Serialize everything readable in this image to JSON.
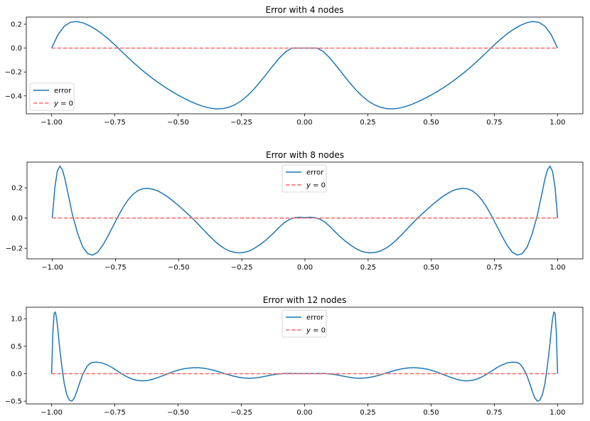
{
  "chart_data": [
    {
      "type": "line",
      "title": "Error with 4 nodes",
      "nodes": 4,
      "xlim": [
        -1.1,
        1.1
      ],
      "ylim": [
        -0.55,
        0.26
      ],
      "xticks": [
        -1.0,
        -0.75,
        -0.5,
        -0.25,
        0.0,
        0.25,
        0.5,
        0.75,
        1.0
      ],
      "xtick_labels": [
        "−1.00",
        "−0.75",
        "−0.50",
        "−0.25",
        "0.00",
        "0.25",
        "0.50",
        "0.75",
        "1.00"
      ],
      "yticks": [
        -0.4,
        -0.2,
        0.0,
        0.2
      ],
      "ytick_labels": [
        "−0.4",
        "−0.2",
        "0.0",
        "0.2"
      ],
      "legend_position": "lower-left",
      "series": [
        {
          "name": "error",
          "color": "#1f77b4",
          "style": "solid",
          "x": [
            -1.0,
            -0.975,
            -0.95,
            -0.925,
            -0.9,
            -0.875,
            -0.85,
            -0.825,
            -0.8,
            -0.775,
            -0.75,
            -0.725,
            -0.7,
            -0.675,
            -0.65,
            -0.625,
            -0.6,
            -0.575,
            -0.55,
            -0.525,
            -0.5,
            -0.475,
            -0.45,
            -0.425,
            -0.4,
            -0.375,
            -0.35,
            -0.325,
            -0.3,
            -0.275,
            -0.25,
            -0.225,
            -0.2,
            -0.175,
            -0.15,
            -0.125,
            -0.1,
            -0.075,
            -0.05,
            -0.025,
            0.0,
            0.025,
            0.05,
            0.075,
            0.1,
            0.125,
            0.15,
            0.175,
            0.2,
            0.225,
            0.25,
            0.275,
            0.3,
            0.325,
            0.35,
            0.375,
            0.4,
            0.425,
            0.45,
            0.475,
            0.5,
            0.525,
            0.55,
            0.575,
            0.6,
            0.625,
            0.65,
            0.675,
            0.7,
            0.725,
            0.75,
            0.775,
            0.8,
            0.825,
            0.85,
            0.875,
            0.9,
            0.925,
            0.95,
            0.975,
            1.0
          ],
          "y": [
            0.0,
            0.1115,
            0.1839,
            0.2172,
            0.2228,
            0.2106,
            0.1872,
            0.1561,
            0.1187,
            0.0754,
            0.0272,
            -0.0236,
            -0.0745,
            -0.1238,
            -0.1705,
            -0.2143,
            -0.2553,
            -0.2937,
            -0.3295,
            -0.3628,
            -0.3935,
            -0.4218,
            -0.4474,
            -0.47,
            -0.4886,
            -0.502,
            -0.5087,
            -0.5071,
            -0.4959,
            -0.474,
            -0.441,
            -0.397,
            -0.3431,
            -0.2812,
            -0.2146,
            -0.1471,
            -0.0836,
            -0.0307,
            0.0,
            0.0,
            0.0,
            0.0,
            0.0,
            -0.0307,
            -0.0836,
            -0.1471,
            -0.2146,
            -0.2812,
            -0.3431,
            -0.397,
            -0.441,
            -0.474,
            -0.4959,
            -0.5071,
            -0.5087,
            -0.502,
            -0.4886,
            -0.47,
            -0.4474,
            -0.4218,
            -0.3935,
            -0.3628,
            -0.3295,
            -0.2937,
            -0.2553,
            -0.2143,
            -0.1705,
            -0.1238,
            -0.0745,
            -0.0236,
            0.0272,
            0.0754,
            0.1187,
            0.1561,
            0.1872,
            0.2106,
            0.2228,
            0.2172,
            0.1839,
            0.1115,
            0.0
          ]
        },
        {
          "name": "$y = 0$",
          "color": "#ff6666",
          "style": "dashed",
          "x": [
            -1.0,
            1.0
          ],
          "y": [
            0.0,
            0.0
          ]
        }
      ]
    },
    {
      "type": "line",
      "title": "Error with 8 nodes",
      "nodes": 8,
      "xlim": [
        -1.1,
        1.1
      ],
      "ylim": [
        -0.27,
        0.37
      ],
      "xticks": [
        -1.0,
        -0.75,
        -0.5,
        -0.25,
        0.0,
        0.25,
        0.5,
        0.75,
        1.0
      ],
      "xtick_labels": [
        "−1.00",
        "−0.75",
        "−0.50",
        "−0.25",
        "0.00",
        "0.25",
        "0.50",
        "0.75",
        "1.00"
      ],
      "yticks": [
        -0.2,
        0.0,
        0.2
      ],
      "ytick_labels": [
        "−0.2",
        "0.0",
        "0.2"
      ],
      "legend_position": "upper-center",
      "series": [
        {
          "name": "error",
          "color": "#1f77b4",
          "style": "solid",
          "x": [
            -1.0,
            -0.99,
            -0.98,
            -0.97,
            -0.96,
            -0.95,
            -0.94,
            -0.93,
            -0.92,
            -0.9,
            -0.88,
            -0.86,
            -0.84,
            -0.82,
            -0.8,
            -0.78,
            -0.76,
            -0.74,
            -0.72,
            -0.7,
            -0.68,
            -0.66,
            -0.64,
            -0.62,
            -0.6,
            -0.58,
            -0.55,
            -0.52,
            -0.5,
            -0.48,
            -0.46,
            -0.44,
            -0.42,
            -0.4,
            -0.38,
            -0.36,
            -0.34,
            -0.32,
            -0.3,
            -0.28,
            -0.26,
            -0.24,
            -0.22,
            -0.2,
            -0.18,
            -0.16,
            -0.14,
            -0.12,
            -0.1,
            -0.08,
            -0.06,
            -0.04,
            -0.02,
            0.0,
            0.02,
            0.04,
            0.06,
            0.08,
            0.1,
            0.12,
            0.14,
            0.16,
            0.18,
            0.2,
            0.22,
            0.24,
            0.26,
            0.28,
            0.3,
            0.32,
            0.34,
            0.36,
            0.38,
            0.4,
            0.42,
            0.44,
            0.46,
            0.48,
            0.5,
            0.52,
            0.55,
            0.58,
            0.6,
            0.62,
            0.64,
            0.66,
            0.68,
            0.7,
            0.72,
            0.74,
            0.76,
            0.78,
            0.8,
            0.82,
            0.84,
            0.86,
            0.88,
            0.9,
            0.92,
            0.93,
            0.94,
            0.95,
            0.96,
            0.97,
            0.98,
            0.99,
            1.0
          ],
          "y": [
            0.0,
            0.2,
            0.31,
            0.343,
            0.32,
            0.26,
            0.18,
            0.1,
            0.02,
            -0.1,
            -0.19,
            -0.235,
            -0.245,
            -0.225,
            -0.18,
            -0.12,
            -0.055,
            0.01,
            0.07,
            0.12,
            0.158,
            0.183,
            0.195,
            0.196,
            0.19,
            0.178,
            0.148,
            0.11,
            0.082,
            0.052,
            0.022,
            -0.01,
            -0.045,
            -0.08,
            -0.115,
            -0.148,
            -0.177,
            -0.2,
            -0.217,
            -0.227,
            -0.23,
            -0.227,
            -0.218,
            -0.2,
            -0.178,
            -0.153,
            -0.124,
            -0.092,
            -0.058,
            -0.028,
            -0.008,
            0.003,
            0.005,
            0.003,
            0.005,
            0.003,
            -0.008,
            -0.028,
            -0.058,
            -0.092,
            -0.124,
            -0.153,
            -0.178,
            -0.2,
            -0.218,
            -0.227,
            -0.23,
            -0.227,
            -0.217,
            -0.2,
            -0.177,
            -0.148,
            -0.115,
            -0.08,
            -0.045,
            -0.01,
            0.022,
            0.052,
            0.082,
            0.11,
            0.148,
            0.178,
            0.19,
            0.196,
            0.195,
            0.183,
            0.158,
            0.12,
            0.07,
            0.01,
            -0.055,
            -0.12,
            -0.18,
            -0.225,
            -0.245,
            -0.235,
            -0.19,
            -0.1,
            0.02,
            0.1,
            0.18,
            0.26,
            0.32,
            0.343,
            0.31,
            0.2,
            0.0
          ]
        },
        {
          "name": "$y = 0$",
          "color": "#ff6666",
          "style": "dashed",
          "x": [
            -1.0,
            1.0
          ],
          "y": [
            0.0,
            0.0
          ]
        }
      ]
    },
    {
      "type": "line",
      "title": "Error with 12 nodes",
      "nodes": 12,
      "xlim": [
        -1.1,
        1.1
      ],
      "ylim": [
        -0.55,
        1.21
      ],
      "xticks": [
        -1.0,
        -0.75,
        -0.5,
        -0.25,
        0.0,
        0.25,
        0.5,
        0.75,
        1.0
      ],
      "xtick_labels": [
        "−1.00",
        "−0.75",
        "−0.50",
        "−0.25",
        "0.00",
        "0.25",
        "0.50",
        "0.75",
        "1.00"
      ],
      "yticks": [
        -0.5,
        0.0,
        0.5,
        1.0
      ],
      "ytick_labels": [
        "−0.5",
        "0.0",
        "0.5",
        "1.0"
      ],
      "legend_position": "upper-center",
      "series": [
        {
          "name": "error",
          "color": "#1f77b4",
          "style": "solid",
          "x": [
            -1.0,
            -0.995,
            -0.99,
            -0.985,
            -0.98,
            -0.975,
            -0.97,
            -0.96,
            -0.95,
            -0.94,
            -0.93,
            -0.92,
            -0.91,
            -0.9,
            -0.89,
            -0.88,
            -0.87,
            -0.86,
            -0.85,
            -0.84,
            -0.82,
            -0.8,
            -0.78,
            -0.76,
            -0.74,
            -0.72,
            -0.7,
            -0.68,
            -0.66,
            -0.64,
            -0.62,
            -0.6,
            -0.58,
            -0.56,
            -0.54,
            -0.52,
            -0.5,
            -0.48,
            -0.46,
            -0.44,
            -0.42,
            -0.4,
            -0.38,
            -0.36,
            -0.34,
            -0.32,
            -0.3,
            -0.28,
            -0.26,
            -0.24,
            -0.22,
            -0.2,
            -0.18,
            -0.16,
            -0.14,
            -0.12,
            -0.1,
            -0.08,
            -0.06,
            -0.04,
            -0.02,
            0.0,
            0.02,
            0.04,
            0.06,
            0.08,
            0.1,
            0.12,
            0.14,
            0.16,
            0.18,
            0.2,
            0.22,
            0.24,
            0.26,
            0.28,
            0.3,
            0.32,
            0.34,
            0.36,
            0.38,
            0.4,
            0.42,
            0.44,
            0.46,
            0.48,
            0.5,
            0.52,
            0.54,
            0.56,
            0.58,
            0.6,
            0.62,
            0.64,
            0.66,
            0.68,
            0.7,
            0.72,
            0.74,
            0.76,
            0.78,
            0.8,
            0.82,
            0.84,
            0.85,
            0.86,
            0.87,
            0.88,
            0.89,
            0.9,
            0.91,
            0.92,
            0.93,
            0.94,
            0.95,
            0.96,
            0.97,
            0.975,
            0.98,
            0.985,
            0.99,
            0.995,
            1.0
          ],
          "y": [
            0.0,
            0.75,
            1.1,
            1.12,
            1.0,
            0.8,
            0.55,
            0.15,
            -0.18,
            -0.38,
            -0.48,
            -0.5,
            -0.44,
            -0.32,
            -0.18,
            -0.05,
            0.05,
            0.13,
            0.18,
            0.205,
            0.21,
            0.195,
            0.16,
            0.11,
            0.05,
            -0.01,
            -0.06,
            -0.1,
            -0.123,
            -0.13,
            -0.123,
            -0.1,
            -0.07,
            -0.035,
            0.0,
            0.035,
            0.065,
            0.087,
            0.101,
            0.108,
            0.108,
            0.1,
            0.085,
            0.063,
            0.037,
            0.008,
            -0.02,
            -0.045,
            -0.064,
            -0.077,
            -0.082,
            -0.079,
            -0.068,
            -0.051,
            -0.032,
            -0.015,
            -0.003,
            0.003,
            0.005,
            0.004,
            0.003,
            0.004,
            0.003,
            0.004,
            0.005,
            0.003,
            -0.003,
            -0.015,
            -0.032,
            -0.051,
            -0.068,
            -0.079,
            -0.082,
            -0.077,
            -0.064,
            -0.045,
            -0.02,
            0.008,
            0.037,
            0.063,
            0.085,
            0.1,
            0.108,
            0.108,
            0.101,
            0.087,
            0.065,
            0.035,
            0.0,
            -0.035,
            -0.07,
            -0.1,
            -0.123,
            -0.13,
            -0.123,
            -0.1,
            -0.06,
            -0.01,
            0.05,
            0.11,
            0.16,
            0.195,
            0.21,
            0.205,
            0.18,
            0.13,
            0.05,
            -0.05,
            -0.18,
            -0.32,
            -0.44,
            -0.5,
            -0.48,
            -0.38,
            -0.18,
            0.15,
            0.55,
            0.8,
            1.0,
            1.12,
            1.1,
            0.75,
            0.0
          ]
        },
        {
          "name": "$y = 0$",
          "color": "#ff6666",
          "style": "dashed",
          "x": [
            -1.0,
            1.0
          ],
          "y": [
            0.0,
            0.0
          ]
        }
      ]
    }
  ],
  "legend_labels": {
    "error": "error",
    "y0_label": "y",
    "y0_rest": " = 0"
  }
}
